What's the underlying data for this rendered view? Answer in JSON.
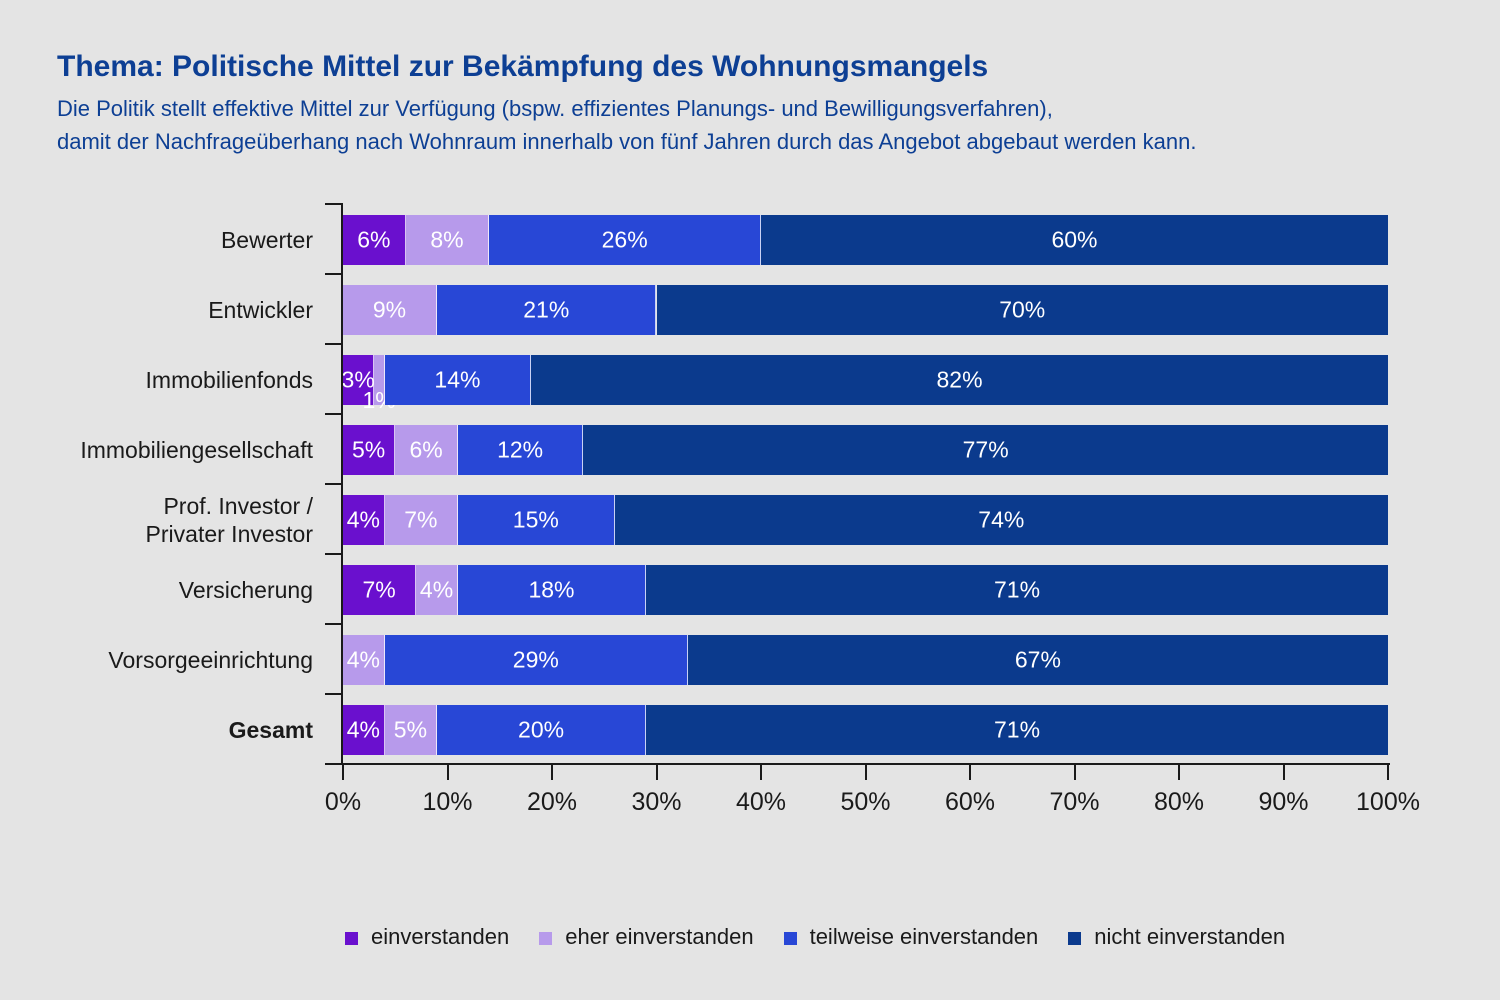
{
  "header": {
    "title": "Thema: Politische Mittel zur Bekämpfung des Wohnungsmangels",
    "subtitle_line1": "Die Politik stellt effektive Mittel zur Verfügung (bspw. effizientes Planungs- und Bewilligungsverfahren),",
    "subtitle_line2": "damit der Nachfrageüberhang nach Wohnraum innerhalb von fünf Jahren durch das Angebot abgebaut werden kann."
  },
  "colors": {
    "background": "#E4E4E4",
    "heading": "#0D3F94",
    "axis": "#1A1A1A",
    "bar_label": "#FFFFFF"
  },
  "chart_data": {
    "type": "bar",
    "orientation": "horizontal",
    "stacked": true,
    "unit": "%",
    "grid": false,
    "legend_position": "bottom",
    "xlim": [
      0,
      100
    ],
    "x_ticks": [
      "0%",
      "10%",
      "20%",
      "30%",
      "40%",
      "50%",
      "60%",
      "70%",
      "80%",
      "90%",
      "100%"
    ],
    "categories": [
      {
        "label": "Bewerter",
        "bold": false
      },
      {
        "label": "Entwickler",
        "bold": false
      },
      {
        "label": "Immobilienfonds",
        "bold": false
      },
      {
        "label": "Immobiliengesellschaft",
        "bold": false
      },
      {
        "label": "Prof. Investor /\nPrivater Investor",
        "bold": false
      },
      {
        "label": "Versicherung",
        "bold": false
      },
      {
        "label": "Vorsorgeeinrichtung",
        "bold": false
      },
      {
        "label": "Gesamt",
        "bold": true
      }
    ],
    "series": [
      {
        "name": "einverstanden",
        "color": "#6A10CE",
        "values": [
          6,
          0,
          3,
          5,
          4,
          7,
          0,
          4
        ]
      },
      {
        "name": "eher einverstanden",
        "color": "#B79AEB",
        "values": [
          8,
          9,
          1,
          6,
          7,
          4,
          4,
          5
        ]
      },
      {
        "name": "teilweise einverstanden",
        "color": "#2847D6",
        "values": [
          26,
          21,
          14,
          12,
          15,
          18,
          29,
          20
        ]
      },
      {
        "name": "nicht einverstanden",
        "color": "#0B3A8D",
        "values": [
          60,
          70,
          82,
          77,
          74,
          71,
          67,
          71
        ]
      }
    ]
  }
}
